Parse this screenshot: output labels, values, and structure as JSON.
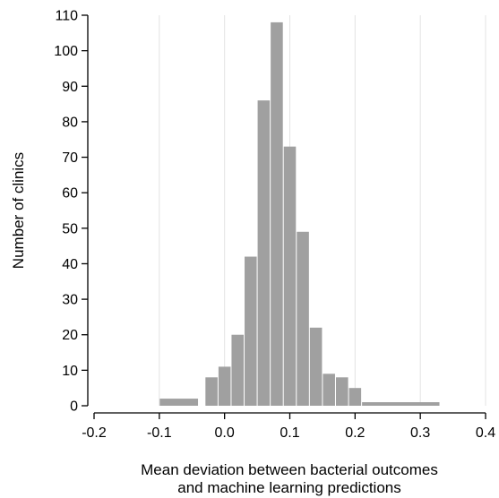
{
  "chart_data": {
    "type": "bar",
    "title": "",
    "xlabel_lines": [
      "Mean deviation between bacterial outcomes",
      "and machine learning predictions"
    ],
    "ylabel": "Number of clinics",
    "xlim": [
      -0.2,
      0.4
    ],
    "ylim": [
      0,
      110
    ],
    "x_ticks": [
      -0.2,
      -0.1,
      0.0,
      0.1,
      0.2,
      0.3,
      0.4
    ],
    "x_tick_labels": [
      "-0.2",
      "-0.1",
      "0.0",
      "0.1",
      "0.2",
      "0.3",
      "0.4"
    ],
    "y_ticks": [
      0,
      10,
      20,
      30,
      40,
      50,
      60,
      70,
      80,
      90,
      100,
      110
    ],
    "y_tick_labels": [
      "0",
      "10",
      "20",
      "30",
      "40",
      "50",
      "60",
      "70",
      "80",
      "90",
      "100",
      "110"
    ],
    "grid": "vertical",
    "bar_color": "#a0a0a0",
    "bins": [
      {
        "x0": -0.1,
        "x1": -0.04,
        "value": 2
      },
      {
        "x0": -0.03,
        "x1": -0.01,
        "value": 8
      },
      {
        "x0": -0.01,
        "x1": 0.01,
        "value": 11
      },
      {
        "x0": 0.01,
        "x1": 0.03,
        "value": 20
      },
      {
        "x0": 0.03,
        "x1": 0.05,
        "value": 42
      },
      {
        "x0": 0.05,
        "x1": 0.07,
        "value": 86
      },
      {
        "x0": 0.07,
        "x1": 0.09,
        "value": 108
      },
      {
        "x0": 0.09,
        "x1": 0.11,
        "value": 73
      },
      {
        "x0": 0.11,
        "x1": 0.13,
        "value": 49
      },
      {
        "x0": 0.13,
        "x1": 0.15,
        "value": 22
      },
      {
        "x0": 0.15,
        "x1": 0.17,
        "value": 9
      },
      {
        "x0": 0.17,
        "x1": 0.19,
        "value": 8
      },
      {
        "x0": 0.19,
        "x1": 0.21,
        "value": 5
      },
      {
        "x0": 0.21,
        "x1": 0.33,
        "value": 1
      }
    ]
  }
}
